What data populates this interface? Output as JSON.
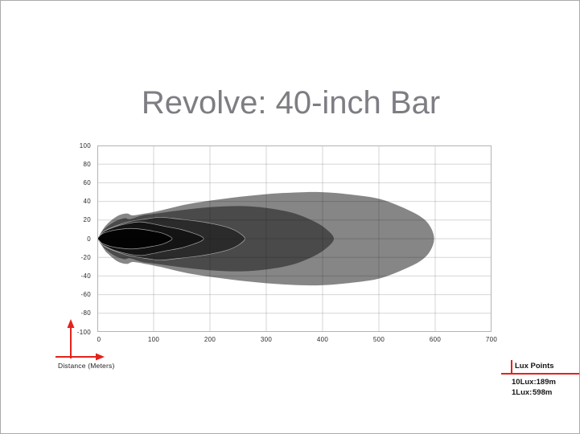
{
  "title": {
    "text": "Revolve: 40-inch Bar",
    "color": "#7d7d83"
  },
  "axis": {
    "x_label": "Distance (Meters)",
    "x_ticks": [
      "0",
      "100",
      "200",
      "300",
      "400",
      "500",
      "600",
      "700"
    ],
    "y_ticks": [
      "100",
      "80",
      "60",
      "40",
      "20",
      "0",
      "-20",
      "-40",
      "-60",
      "-80",
      "-100"
    ]
  },
  "legend": {
    "title": "Lux Points",
    "entries": [
      {
        "label": "10Lux:",
        "value": "189m"
      },
      {
        "label": "1Lux:",
        "value": "598m"
      }
    ]
  },
  "colors": {
    "accent_red": "#e2231c",
    "grid_overlay": "rgba(0,0,0,0.16)",
    "chart_border": "#b3b3b3",
    "contour_outline": "rgba(190,190,190,0.85)"
  },
  "chart_data": {
    "type": "area",
    "subtype": "isolux-beam-contours",
    "title": "Revolve: 40-inch Bar",
    "xlabel": "Distance (Meters)",
    "ylabel": "",
    "x_range": [
      0,
      700
    ],
    "y_range": [
      -100,
      100
    ],
    "x_ticks": [
      0,
      100,
      200,
      300,
      400,
      500,
      600,
      700
    ],
    "y_ticks": [
      100,
      80,
      60,
      40,
      20,
      0,
      -20,
      -40,
      -60,
      -80,
      -100
    ],
    "grid": true,
    "legend_position": "bottom-right",
    "lux_points": [
      {
        "lux": 10,
        "distance_m": 189
      },
      {
        "lux": 1,
        "distance_m": 598
      }
    ],
    "contours": [
      {
        "name": "1Lux",
        "reach_m": 598,
        "color": "#868686",
        "outlined": false,
        "points_m": [
          [
            0,
            0
          ],
          [
            15,
            14
          ],
          [
            35,
            24
          ],
          [
            52,
            27
          ],
          [
            63,
            25
          ],
          [
            85,
            27
          ],
          [
            110,
            30
          ],
          [
            160,
            37
          ],
          [
            215,
            42
          ],
          [
            270,
            46
          ],
          [
            330,
            49
          ],
          [
            395,
            50
          ],
          [
            455,
            47
          ],
          [
            505,
            42
          ],
          [
            555,
            30
          ],
          [
            580,
            21
          ],
          [
            593,
            11
          ],
          [
            598,
            0
          ]
        ]
      },
      {
        "name": "contour-2",
        "reach_m": 420,
        "color": "#4a4a4a",
        "outlined": false,
        "points_m": [
          [
            0,
            0
          ],
          [
            12,
            10
          ],
          [
            30,
            18
          ],
          [
            48,
            22
          ],
          [
            58,
            21
          ],
          [
            80,
            25
          ],
          [
            105,
            27
          ],
          [
            155,
            31
          ],
          [
            205,
            34
          ],
          [
            255,
            35
          ],
          [
            300,
            33
          ],
          [
            345,
            28
          ],
          [
            380,
            20
          ],
          [
            405,
            11
          ],
          [
            420,
            0
          ]
        ]
      },
      {
        "name": "contour-3",
        "reach_m": 262,
        "color": "#2b2b2b",
        "outlined": true,
        "points_m": [
          [
            0,
            0
          ],
          [
            12,
            8
          ],
          [
            30,
            13
          ],
          [
            55,
            18
          ],
          [
            85,
            21
          ],
          [
            112,
            23
          ],
          [
            145,
            21
          ],
          [
            175,
            19
          ],
          [
            205,
            16
          ],
          [
            232,
            12
          ],
          [
            250,
            7
          ],
          [
            262,
            0
          ]
        ]
      },
      {
        "name": "10Lux",
        "reach_m": 189,
        "color": "#141414",
        "outlined": true,
        "points_m": [
          [
            0,
            0
          ],
          [
            10,
            7
          ],
          [
            28,
            12
          ],
          [
            52,
            16
          ],
          [
            75,
            18
          ],
          [
            98,
            16
          ],
          [
            122,
            13
          ],
          [
            148,
            10
          ],
          [
            170,
            6
          ],
          [
            183,
            3
          ],
          [
            189,
            0
          ]
        ]
      },
      {
        "name": "hotspot",
        "reach_m": 133,
        "color": "#030303",
        "outlined": true,
        "points_m": [
          [
            0,
            0
          ],
          [
            8,
            5
          ],
          [
            22,
            8
          ],
          [
            40,
            10
          ],
          [
            60,
            11
          ],
          [
            80,
            10
          ],
          [
            100,
            8
          ],
          [
            115,
            6
          ],
          [
            127,
            3
          ],
          [
            133,
            0
          ]
        ]
      }
    ]
  }
}
